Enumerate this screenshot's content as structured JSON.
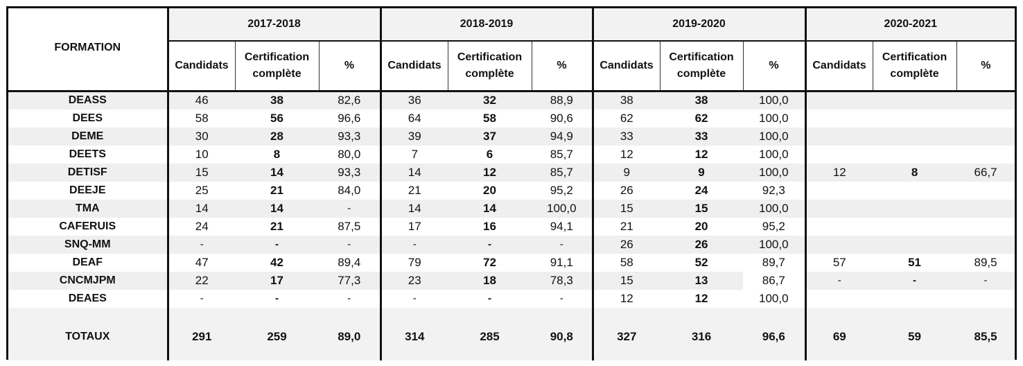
{
  "header": {
    "formation_label": "FORMATION",
    "years": [
      "2017-2018",
      "2018-2019",
      "2019-2020",
      "2020-2021"
    ],
    "col_candidats": "Candidats",
    "col_certification": "Certification complète",
    "col_percent": "%"
  },
  "rows": [
    {
      "name": "DEASS",
      "cells": [
        [
          "46",
          "38",
          "82,6"
        ],
        [
          "36",
          "32",
          "88,9"
        ],
        [
          "38",
          "38",
          "100,0"
        ],
        [
          "",
          "",
          ""
        ]
      ]
    },
    {
      "name": "DEES",
      "cells": [
        [
          "58",
          "56",
          "96,6"
        ],
        [
          "64",
          "58",
          "90,6"
        ],
        [
          "62",
          "62",
          "100,0"
        ],
        [
          "",
          "",
          ""
        ]
      ]
    },
    {
      "name": "DEME",
      "cells": [
        [
          "30",
          "28",
          "93,3"
        ],
        [
          "39",
          "37",
          "94,9"
        ],
        [
          "33",
          "33",
          "100,0"
        ],
        [
          "",
          "",
          ""
        ]
      ]
    },
    {
      "name": "DEETS",
      "cells": [
        [
          "10",
          "8",
          "80,0"
        ],
        [
          "7",
          "6",
          "85,7"
        ],
        [
          "12",
          "12",
          "100,0"
        ],
        [
          "",
          "",
          ""
        ]
      ]
    },
    {
      "name": "DETISF",
      "cells": [
        [
          "15",
          "14",
          "93,3"
        ],
        [
          "14",
          "12",
          "85,7"
        ],
        [
          "9",
          "9",
          "100,0"
        ],
        [
          "12",
          "8",
          "66,7"
        ]
      ]
    },
    {
      "name": "DEEJE",
      "cells": [
        [
          "25",
          "21",
          "84,0"
        ],
        [
          "21",
          "20",
          "95,2"
        ],
        [
          "26",
          "24",
          "92,3"
        ],
        [
          "",
          "",
          ""
        ]
      ]
    },
    {
      "name": "TMA",
      "cells": [
        [
          "14",
          "14",
          "-"
        ],
        [
          "14",
          "14",
          "100,0"
        ],
        [
          "15",
          "15",
          "100,0"
        ],
        [
          "",
          "",
          ""
        ]
      ]
    },
    {
      "name": "CAFERUIS",
      "cells": [
        [
          "24",
          "21",
          "87,5"
        ],
        [
          "17",
          "16",
          "94,1"
        ],
        [
          "21",
          "20",
          "95,2"
        ],
        [
          "",
          "",
          ""
        ]
      ]
    },
    {
      "name": "SNQ-MM",
      "cells": [
        [
          "-",
          "-",
          "-"
        ],
        [
          "-",
          "-",
          "-"
        ],
        [
          "26",
          "26",
          "100,0"
        ],
        [
          "",
          "",
          ""
        ]
      ]
    },
    {
      "name": "DEAF",
      "cells": [
        [
          "47",
          "42",
          "89,4"
        ],
        [
          "79",
          "72",
          "91,1"
        ],
        [
          "58",
          "52",
          "89,7"
        ],
        [
          "57",
          "51",
          "89,5"
        ]
      ]
    },
    {
      "name": "CNCMJPM",
      "cells": [
        [
          "22",
          "17",
          "77,3"
        ],
        [
          "23",
          "18",
          "78,3"
        ],
        [
          "15",
          "13",
          "86,7"
        ],
        [
          "-",
          "-",
          "-"
        ]
      ]
    },
    {
      "name": "DEAES",
      "cells": [
        [
          "-",
          "-",
          "-"
        ],
        [
          "-",
          "-",
          "-"
        ],
        [
          "12",
          "12",
          "100,0"
        ],
        [
          "",
          "",
          ""
        ]
      ]
    }
  ],
  "totals": {
    "label": "TOTAUX",
    "cells": [
      [
        "291",
        "259",
        "89,0"
      ],
      [
        "314",
        "285",
        "90,8"
      ],
      [
        "327",
        "316",
        "96,6"
      ],
      [
        "69",
        "59",
        "85,5"
      ]
    ]
  }
}
